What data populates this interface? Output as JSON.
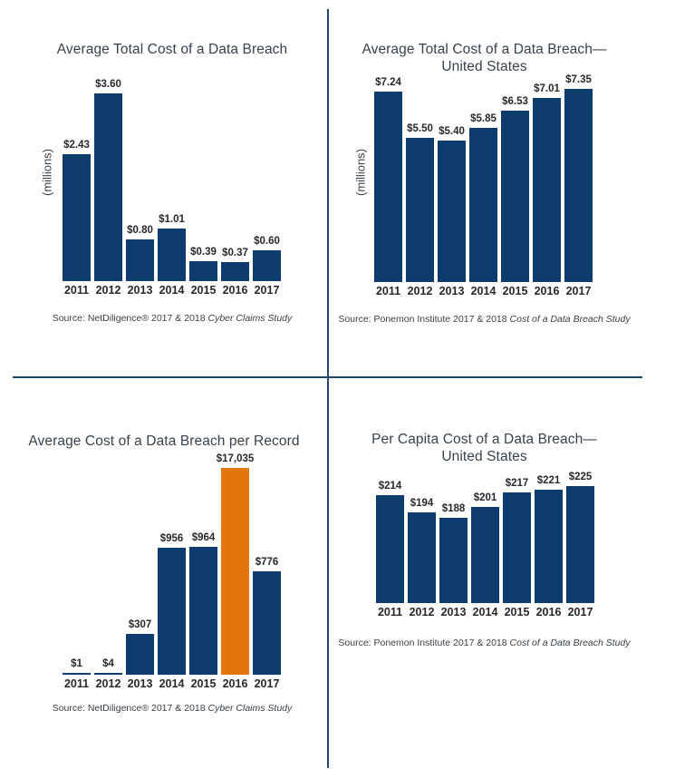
{
  "page": {
    "background": "#ffffff",
    "divider_color": "#1E4771",
    "bar_navy": "#0E3C6E",
    "bar_orange": "#E2750D"
  },
  "chart_data": [
    {
      "type": "bar",
      "title_line1": "Average Total Cost of a Data Breach",
      "title_line2": "",
      "ylabel": "(millions)",
      "categories": [
        "2011",
        "2012",
        "2013",
        "2014",
        "2015",
        "2016",
        "2017"
      ],
      "values": [
        2.43,
        3.6,
        0.8,
        1.01,
        0.39,
        0.37,
        0.6
      ],
      "value_labels": [
        "$2.43",
        "$3.60",
        "$0.80",
        "$1.01",
        "$0.39",
        "$0.37",
        "$0.60"
      ],
      "ylim": [
        0,
        3.6
      ],
      "grid": false,
      "legend": false,
      "bar_color": "#0E3C6E",
      "bar_color_overrides": {},
      "source_prefix": "Source: NetDiligence® 2017 & 2018 ",
      "source_italic": "Cyber Claims Study"
    },
    {
      "type": "bar",
      "title_line1": "Average Total Cost of a Data Breach—",
      "title_line2": "United States",
      "ylabel": "(millions)",
      "categories": [
        "2011",
        "2012",
        "2013",
        "2014",
        "2015",
        "2016",
        "2017"
      ],
      "values": [
        7.24,
        5.5,
        5.4,
        5.85,
        6.53,
        7.01,
        7.35
      ],
      "value_labels": [
        "$7.24",
        "$5.50",
        "$5.40",
        "$5.85",
        "$6.53",
        "$7.01",
        "$7.35"
      ],
      "ylim": [
        0,
        7.35
      ],
      "grid": false,
      "legend": false,
      "bar_color": "#0E3C6E",
      "bar_color_overrides": {},
      "source_prefix": "Source: Ponemon Institute 2017 & 2018 ",
      "source_italic": "Cost of a Data Breach Study"
    },
    {
      "type": "bar",
      "title_line1": "Average Cost of a Data Breach per Record",
      "title_line2": "",
      "ylabel": "",
      "categories": [
        "2011",
        "2012",
        "2013",
        "2014",
        "2015",
        "2016",
        "2017"
      ],
      "values": [
        1,
        4,
        307,
        956,
        964,
        17035,
        776
      ],
      "value_labels": [
        "$1",
        "$4",
        "$307",
        "$956",
        "$964",
        "$17,035",
        "$776"
      ],
      "ylim": [
        0,
        1558
      ],
      "clipped_bar_index": 5,
      "grid": false,
      "legend": false,
      "bar_color": "#0E3C6E",
      "bar_color_overrides": {
        "5": "#E2750D"
      },
      "source_prefix": "Source: NetDiligence® 2017 & 2018 ",
      "source_italic": "Cyber Claims Study"
    },
    {
      "type": "bar",
      "title_line1": "Per Capita Cost of a Data Breach—",
      "title_line2": "United States",
      "ylabel": "",
      "categories": [
        "2011",
        "2012",
        "2013",
        "2014",
        "2015",
        "2016",
        "2017"
      ],
      "values": [
        214,
        194,
        188,
        201,
        217,
        221,
        225
      ],
      "value_labels": [
        "$214",
        "$194",
        "$188",
        "$201",
        "$217",
        "$221",
        "$225"
      ],
      "ylim": [
        88,
        226
      ],
      "grid": false,
      "legend": false,
      "bar_color": "#0E3C6E",
      "bar_color_overrides": {},
      "source_prefix": "Source: Ponemon Institute 2017 & 2018 ",
      "source_italic": "Cost of a Data Breach Study"
    }
  ]
}
